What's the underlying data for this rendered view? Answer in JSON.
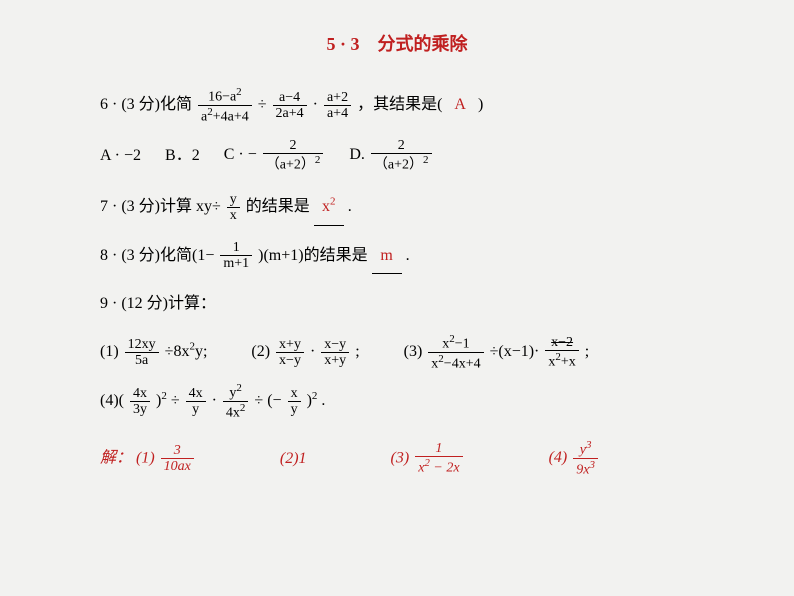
{
  "title": {
    "section": "5 · 3",
    "name": "分式的乘除",
    "color": "#c02020"
  },
  "q6": {
    "prefix": "6 · (3 分)化简",
    "frac1_num": "16−a",
    "frac1_num_sup": "2",
    "frac1_den": "a",
    "frac1_den_sup": "2",
    "frac1_den_rest": "+4a+4",
    "div": "÷",
    "frac2_num": "a−4",
    "frac2_den": "2a+4",
    "dot": "·",
    "frac3_num": "a+2",
    "frac3_den": "a+4",
    "suffix": "，其结果是(",
    "answer": "A",
    "suffix2": ")",
    "options": {
      "a": "A · −2",
      "b": "B．2",
      "c_prefix": "C · −",
      "c_num": "2",
      "c_den": "（a+2）",
      "c_den_sup": "2",
      "d_prefix": "D.",
      "d_num": "2",
      "d_den": "（a+2）",
      "d_den_sup": "2"
    }
  },
  "q7": {
    "prefix": "7 · (3 分)计算 xy÷",
    "frac_num": "y",
    "frac_den": "x",
    "suffix": "的结果是",
    "answer_base": "x",
    "answer_sup": "2",
    "period": "."
  },
  "q8": {
    "prefix": "8 · (3 分)化简(1−",
    "frac_num": "1",
    "frac_den": "m+1",
    "suffix": ")(m+1)的结果是",
    "answer": "m",
    "period": "."
  },
  "q9": {
    "header": "9 · (12 分)计算：",
    "p1": {
      "label": "(1)",
      "frac_num": "12xy",
      "frac_den": "5a",
      "rest": "÷8x",
      "rest_sup": "2",
      "rest2": "y;"
    },
    "p2": {
      "label": "(2)",
      "f1_num": "x+y",
      "f1_den": "x−y",
      "dot": "·",
      "f2_num": "x−y",
      "f2_den": "x+y",
      "end": ";"
    },
    "p3": {
      "label": "(3)",
      "f1_num": "x",
      "f1_num_sup": "2",
      "f1_num_rest": "−1",
      "f1_den": "x",
      "f1_den_sup": "2",
      "f1_den_rest": "−4x+4",
      "mid": "÷(x−1)·",
      "f2_num": "x−2",
      "f2_den": "x",
      "f2_den_sup": "2",
      "f2_den_rest": "+x",
      "end": ";"
    },
    "p4": {
      "label": "(4)(",
      "f1_num": "4x",
      "f1_den": "3y",
      "mid1": ")",
      "mid1_sup": "2",
      "mid2": " ÷ ",
      "f2_num": "4x",
      "f2_den": "y",
      "mid3": "·",
      "f3_num": "y",
      "f3_num_sup": "2",
      "f3_den": "4x",
      "f3_den_sup": "2",
      "mid4": "÷ (−",
      "f4_num": "x",
      "f4_den": "y",
      "mid5": ")",
      "mid5_sup": "2",
      "end": "."
    }
  },
  "solution": {
    "label": "解：",
    "s1": {
      "label": "(1)",
      "num": "3",
      "den": "10ax"
    },
    "s2": {
      "label": "(2)",
      "val": "1"
    },
    "s3": {
      "label": "(3)",
      "num": "1",
      "den_a": "x",
      "den_sup": "2",
      "den_b": " − 2x"
    },
    "s4": {
      "label": "(4)",
      "num_a": "y",
      "num_sup": "3",
      "den_a": "9x",
      "den_sup": "3"
    }
  },
  "colors": {
    "text": "#000000",
    "accent": "#c02020",
    "background": "#f2f2f0"
  }
}
